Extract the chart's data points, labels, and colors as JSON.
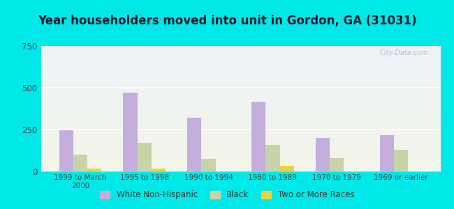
{
  "title": "Year householders moved into unit in Gordon, GA (31031)",
  "categories": [
    "1999 to March\n2000",
    "1995 to 1998",
    "1990 to 1994",
    "1980 to 1989",
    "1970 to 1979",
    "1969 or earlier"
  ],
  "white": [
    245,
    470,
    320,
    415,
    200,
    215
  ],
  "black": [
    100,
    170,
    75,
    160,
    80,
    130
  ],
  "two_or_more": [
    15,
    15,
    0,
    35,
    0,
    0
  ],
  "white_color": "#c4aedd",
  "black_color": "#c8d4a8",
  "two_color": "#f0d040",
  "bg_outer": "#00e8e8",
  "ylim": [
    0,
    750
  ],
  "yticks": [
    0,
    250,
    500,
    750
  ],
  "title_fontsize": 12,
  "legend_labels": [
    "White Non-Hispanic",
    "Black",
    "Two or More Races"
  ],
  "watermark": "City-Data.com"
}
